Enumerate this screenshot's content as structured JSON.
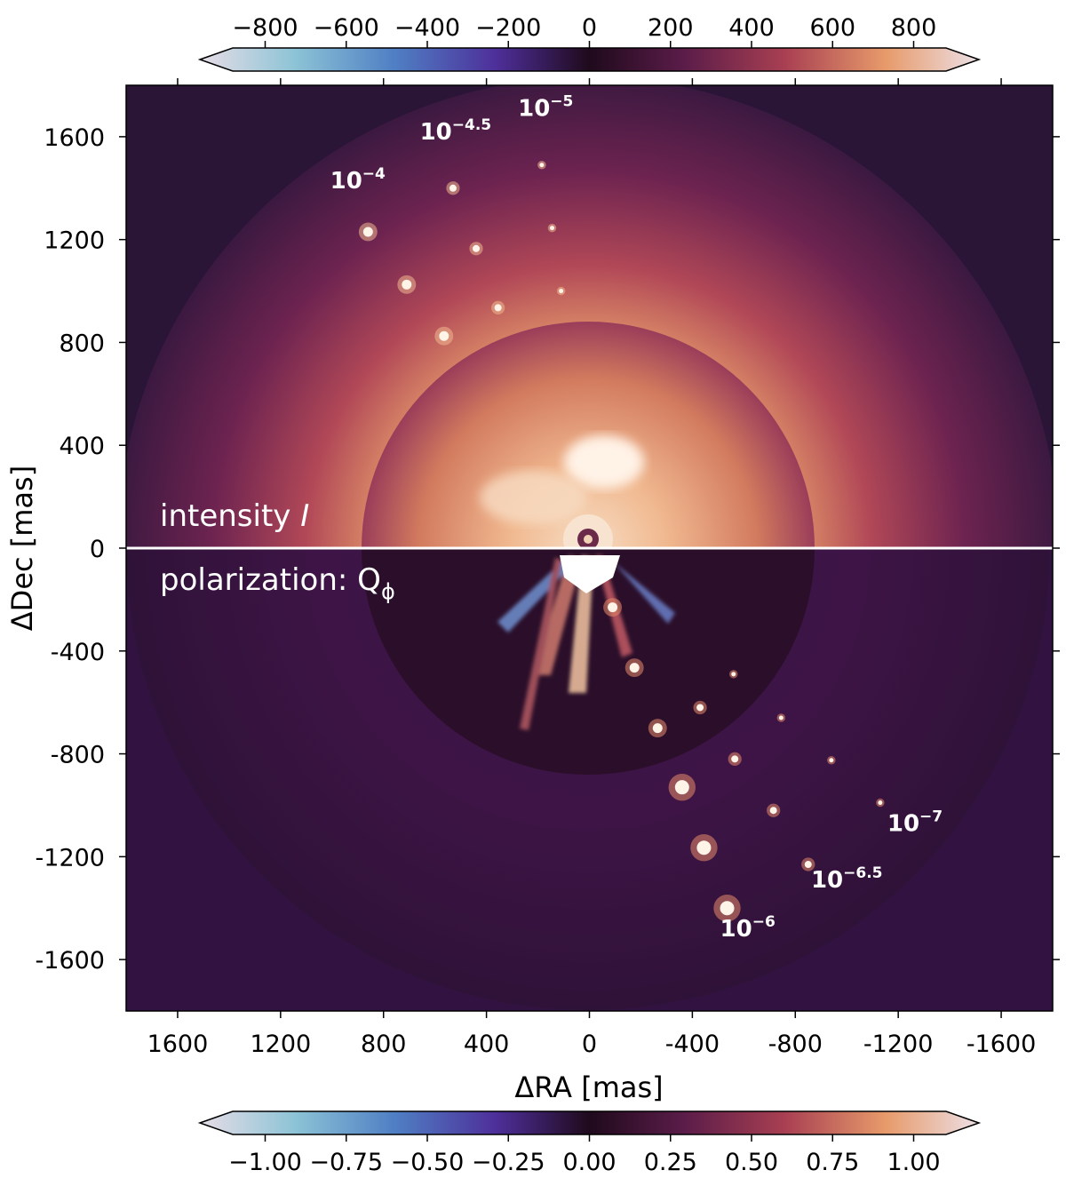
{
  "colors": {
    "background_dark": "#2a1537",
    "intensity_glow": "#f7d2b0",
    "divider": "#ffffff",
    "colormap": [
      "#e7dde7",
      "#6fb1cb",
      "#4a5fbd",
      "#4d2a8a",
      "#1f0a1c",
      "#5a1c49",
      "#a23c4f",
      "#dc8257",
      "#f0c59f",
      "#e8dde8"
    ]
  },
  "chart_data": {
    "type": "heatmap",
    "xlabel": "ΔRA [mas]",
    "ylabel": "ΔDec [mas]",
    "xlim": [
      1800,
      -1800
    ],
    "ylim": [
      -1800,
      1800
    ],
    "x_ticks": [
      1600,
      1200,
      800,
      400,
      0,
      -400,
      -800,
      -1200,
      -1600
    ],
    "y_ticks": [
      1600,
      1200,
      800,
      400,
      0,
      -400,
      -800,
      -1200,
      -1600
    ],
    "x_tick_labels": [
      "1600",
      "1200",
      "800",
      "400",
      "0",
      "-400",
      "-800",
      "-1200",
      "-1600"
    ],
    "y_tick_labels": [
      "1600",
      "1200",
      "800",
      "400",
      "0",
      "-400",
      "-800",
      "-1200",
      "-1600"
    ],
    "top_half_label": "intensity",
    "top_half_label_symbol": "I",
    "bottom_half_label": "polarization: Q",
    "bottom_half_label_sub": "ϕ",
    "colorbar_top": {
      "ticks": [
        -800,
        -600,
        -400,
        -200,
        0,
        200,
        400,
        600,
        800
      ],
      "tick_labels": [
        "−800",
        "−600",
        "−400",
        "−200",
        "0",
        "200",
        "400",
        "600",
        "800"
      ],
      "range": [
        -880,
        880
      ],
      "extend": "both"
    },
    "colorbar_bottom": {
      "ticks": [
        -1.0,
        -0.75,
        -0.5,
        -0.25,
        0.0,
        0.25,
        0.5,
        0.75,
        1.0
      ],
      "tick_labels": [
        "−1.00",
        "−0.75",
        "−0.50",
        "−0.25",
        "0.00",
        "0.25",
        "0.50",
        "0.75",
        "1.00"
      ],
      "range": [
        -1.1,
        1.1
      ],
      "extend": "both"
    },
    "contrast_labels": [
      {
        "base": "10",
        "exp": "−4",
        "x": 900,
        "y": 1400
      },
      {
        "base": "10",
        "exp": "−4.5",
        "x": 520,
        "y": 1590
      },
      {
        "base": "10",
        "exp": "−5",
        "x": 170,
        "y": 1680
      },
      {
        "base": "10",
        "exp": "−6",
        "x": -615,
        "y": -1510
      },
      {
        "base": "10",
        "exp": "−6.5",
        "x": -1000,
        "y": -1320
      },
      {
        "base": "10",
        "exp": "−7",
        "x": -1265,
        "y": -1100
      }
    ],
    "injected_sources": [
      {
        "x": 860,
        "y": 1230,
        "mag": 2
      },
      {
        "x": 710,
        "y": 1025,
        "mag": 2
      },
      {
        "x": 565,
        "y": 825,
        "mag": 2
      },
      {
        "x": 530,
        "y": 1400,
        "mag": 1
      },
      {
        "x": 440,
        "y": 1165,
        "mag": 1
      },
      {
        "x": 355,
        "y": 935,
        "mag": 1
      },
      {
        "x": 185,
        "y": 1490,
        "mag": 0
      },
      {
        "x": 145,
        "y": 1245,
        "mag": 0
      },
      {
        "x": 110,
        "y": 1000,
        "mag": 0
      },
      {
        "x": -90,
        "y": -230,
        "mag": 2
      },
      {
        "x": -175,
        "y": -465,
        "mag": 2
      },
      {
        "x": -265,
        "y": -700,
        "mag": 2
      },
      {
        "x": -360,
        "y": -930,
        "mag": 3
      },
      {
        "x": -445,
        "y": -1165,
        "mag": 3
      },
      {
        "x": -535,
        "y": -1400,
        "mag": 3
      },
      {
        "x": -430,
        "y": -620,
        "mag": 1
      },
      {
        "x": -565,
        "y": -820,
        "mag": 1
      },
      {
        "x": -715,
        "y": -1020,
        "mag": 1
      },
      {
        "x": -850,
        "y": -1230,
        "mag": 1
      },
      {
        "x": -560,
        "y": -490,
        "mag": 0
      },
      {
        "x": -745,
        "y": -660,
        "mag": 0
      },
      {
        "x": -940,
        "y": -825,
        "mag": 0
      },
      {
        "x": -1130,
        "y": -990,
        "mag": 0
      }
    ]
  }
}
